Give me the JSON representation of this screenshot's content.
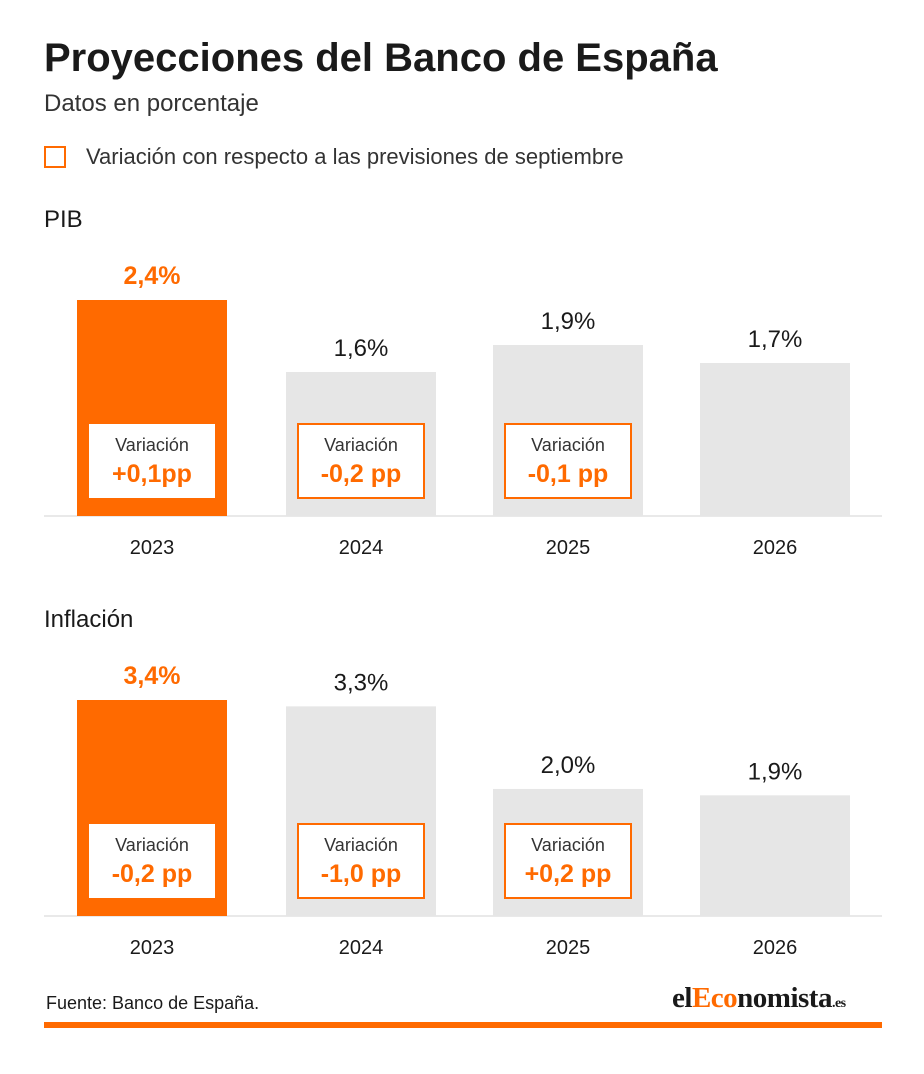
{
  "header": {
    "title": "Proyecciones del Banco de España",
    "subtitle": "Datos en porcentaje",
    "legend_label": "Variación con respecto a las previsiones de septiembre"
  },
  "colors": {
    "highlight": "#ff6a00",
    "bar_default": "#e6e6e6",
    "text": "#1a1a1a"
  },
  "chart_data": [
    {
      "type": "bar",
      "title": "PIB",
      "categories": [
        "2023",
        "2024",
        "2025",
        "2026"
      ],
      "values": [
        2.4,
        1.6,
        1.9,
        1.7
      ],
      "value_labels": [
        "2,4%",
        "1,6%",
        "1,9%",
        "1,7%"
      ],
      "highlight_index": 0,
      "variation_title": "Variación",
      "variations": [
        "+0,1pp",
        "-0,2 pp",
        "-0,1 pp",
        null
      ],
      "ylim": [
        0,
        2.4
      ],
      "grid": false,
      "legend": "top-left"
    },
    {
      "type": "bar",
      "title": "Inflación",
      "categories": [
        "2023",
        "2024",
        "2025",
        "2026"
      ],
      "values": [
        3.4,
        3.3,
        2.0,
        1.9
      ],
      "value_labels": [
        "3,4%",
        "3,3%",
        "2,0%",
        "1,9%"
      ],
      "highlight_index": 0,
      "variation_title": "Variación",
      "variations": [
        "-0,2 pp",
        "-1,0 pp",
        "+0,2 pp",
        null
      ],
      "ylim": [
        0,
        3.4
      ],
      "grid": false,
      "legend": "top-left"
    }
  ],
  "footer": {
    "source": "Fuente: Banco de España.",
    "brand_prefix": "el",
    "brand_accent": "Eco",
    "brand_main": "nomista",
    "brand_tld": ".es"
  }
}
